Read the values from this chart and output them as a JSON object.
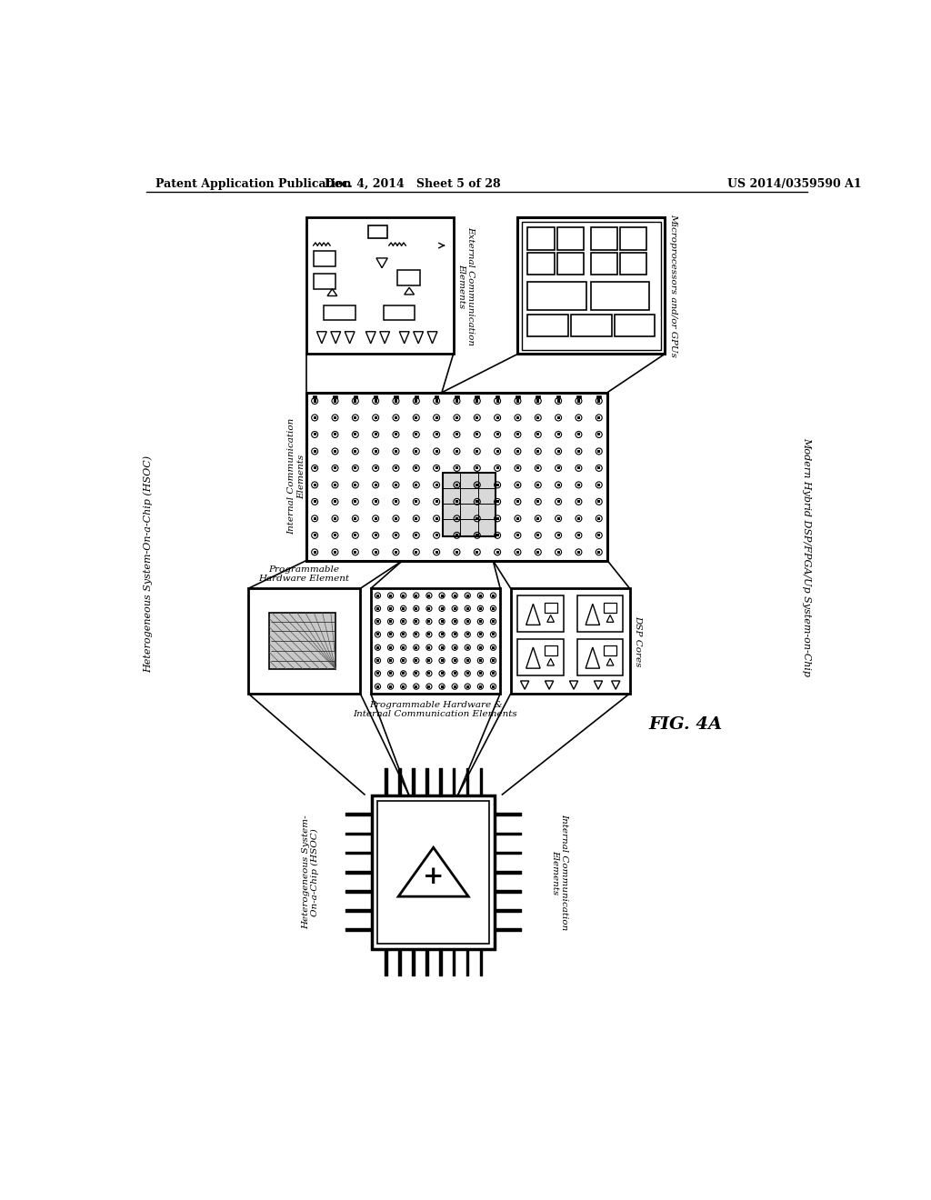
{
  "bg_color": "#ffffff",
  "header_left": "Patent Application Publication",
  "header_mid": "Dec. 4, 2014   Sheet 5 of 28",
  "header_right": "US 2014/0359590 A1",
  "fig_label": "FIG. 4A",
  "right_label": "Modern Hybrid DSP/FPGA/Up System-on-Chip",
  "left_label": "Heterogeneous System-On-a-Chip (HSOC)",
  "box1_label": "External Communication\nElements",
  "box2_label": "Microprocessors and/or GPUs",
  "box3_label": "Internal Communication\nElements",
  "box4_label": "Programmable\nHardware Element",
  "box5_label": "Programmable Hardware &\nInternal Communication Elements",
  "box6_label": "DSP Cores",
  "box7_label": "Internal Communication\nElements",
  "box8_label": "Heterogeneous System-\nOn-a-Chip (HSOC)"
}
